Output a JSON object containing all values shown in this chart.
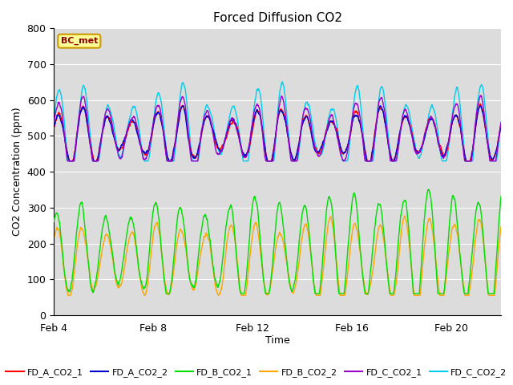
{
  "title": "Forced Diffusion CO2",
  "xlabel": "Time",
  "ylabel": "CO2 Concentration (ppm)",
  "xlim_days": [
    4,
    22
  ],
  "ylim": [
    0,
    800
  ],
  "yticks": [
    0,
    100,
    200,
    300,
    400,
    500,
    600,
    700,
    800
  ],
  "xtick_labels": [
    "Feb 4",
    "Feb 8",
    "Feb 12",
    "Feb 16",
    "Feb 20"
  ],
  "xtick_positions": [
    4,
    8,
    12,
    16,
    20
  ],
  "bg_color": "#dcdcdc",
  "fig_color": "#ffffff",
  "series_colors": {
    "FD_A_CO2_1": "#ff0000",
    "FD_A_CO2_2": "#0000cc",
    "FD_B_CO2_1": "#00dd00",
    "FD_B_CO2_2": "#ffa500",
    "FD_C_CO2_1": "#9900cc",
    "FD_C_CO2_2": "#00ccee"
  },
  "legend_label": "BC_met",
  "legend_bg": "#ffff99",
  "legend_border": "#cc9900",
  "title_fontsize": 11,
  "axis_label_fontsize": 9,
  "tick_label_fontsize": 9,
  "legend_fontsize": 8
}
